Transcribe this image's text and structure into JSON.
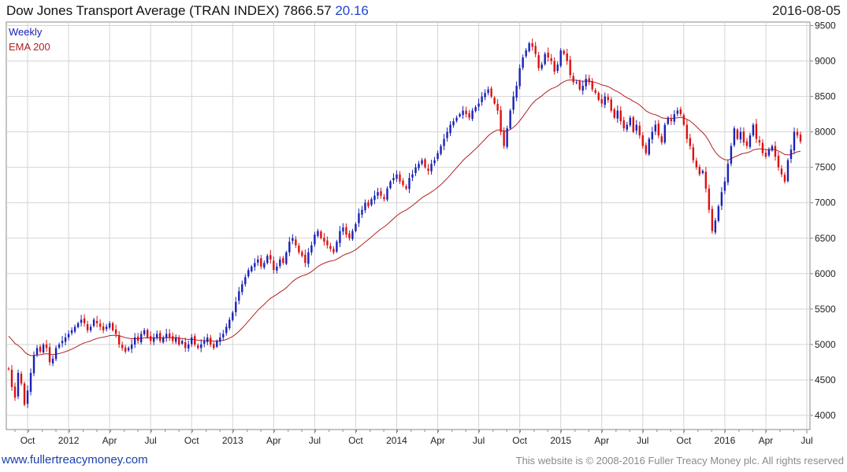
{
  "header": {
    "title": "Dow Jones Transport Average (TRAN INDEX) 7866.57",
    "change": "20.16",
    "date": "2016-08-05"
  },
  "footer": {
    "site_link": "www.fullertreacymoney.com",
    "copyright": "This website is © 2008-2016 Fuller Treacy Money plc. All rights reserved"
  },
  "colors": {
    "up": "#1a22b8",
    "down": "#dd1111",
    "ema": "#b22222",
    "grid": "#d4d4d4",
    "axis": "#888888"
  },
  "chart_data": {
    "type": "candlestick",
    "title": "Dow Jones Transport Average (TRAN INDEX)",
    "period": "Weekly",
    "ylim": [
      3800,
      9550
    ],
    "y_ticks": [
      4000,
      4500,
      5000,
      5500,
      6000,
      6500,
      7000,
      7500,
      8000,
      8500,
      9000,
      9500
    ],
    "x_ticks": [
      {
        "label": "Oct",
        "week": 6
      },
      {
        "label": "2012",
        "week": 19
      },
      {
        "label": "Apr",
        "week": 32
      },
      {
        "label": "Jul",
        "week": 45
      },
      {
        "label": "Oct",
        "week": 58
      },
      {
        "label": "2013",
        "week": 71
      },
      {
        "label": "Apr",
        "week": 84
      },
      {
        "label": "Jul",
        "week": 97
      },
      {
        "label": "Oct",
        "week": 110
      },
      {
        "label": "2014",
        "week": 123
      },
      {
        "label": "Apr",
        "week": 136
      },
      {
        "label": "Jul",
        "week": 149
      },
      {
        "label": "Oct",
        "week": 162
      },
      {
        "label": "2015",
        "week": 175
      },
      {
        "label": "Apr",
        "week": 188
      },
      {
        "label": "Jul",
        "week": 201
      },
      {
        "label": "Oct",
        "week": 214
      },
      {
        "label": "2016",
        "week": 227
      },
      {
        "label": "Apr",
        "week": 240
      },
      {
        "label": "Jul",
        "week": 253
      }
    ],
    "legend": [
      {
        "label": "Weekly",
        "color": "#1a22b8"
      },
      {
        "label": "EMA 200",
        "color": "#b22222"
      }
    ],
    "weekly_close": [
      4650,
      4400,
      4250,
      4600,
      4450,
      4150,
      4350,
      4600,
      4850,
      4950,
      4900,
      5000,
      4950,
      4750,
      4800,
      4950,
      5000,
      5050,
      5100,
      5150,
      5200,
      5250,
      5300,
      5350,
      5300,
      5200,
      5250,
      5350,
      5300,
      5250,
      5200,
      5250,
      5300,
      5200,
      5150,
      5000,
      4950,
      4900,
      4950,
      5000,
      5100,
      5050,
      5150,
      5200,
      5100,
      5050,
      5100,
      5150,
      5050,
      5100,
      5150,
      5100,
      5050,
      5100,
      5000,
      5050,
      4950,
      5000,
      5100,
      5000,
      4950,
      5000,
      5050,
      5100,
      5000,
      4950,
      5050,
      5100,
      5150,
      5250,
      5350,
      5450,
      5600,
      5750,
      5850,
      5950,
      6050,
      6100,
      6150,
      6200,
      6100,
      6150,
      6250,
      6200,
      6050,
      6100,
      6200,
      6150,
      6300,
      6450,
      6500,
      6400,
      6300,
      6250,
      6150,
      6300,
      6400,
      6550,
      6600,
      6500,
      6450,
      6400,
      6350,
      6300,
      6450,
      6600,
      6650,
      6550,
      6500,
      6600,
      6700,
      6850,
      6900,
      7000,
      6950,
      7050,
      7100,
      7150,
      7100,
      7050,
      7200,
      7300,
      7350,
      7400,
      7300,
      7250,
      7200,
      7350,
      7400,
      7500,
      7550,
      7600,
      7500,
      7450,
      7550,
      7600,
      7700,
      7800,
      7900,
      8000,
      8100,
      8150,
      8200,
      8250,
      8300,
      8250,
      8200,
      8300,
      8350,
      8400,
      8500,
      8550,
      8600,
      8500,
      8400,
      8300,
      8000,
      7800,
      8050,
      8300,
      8500,
      8650,
      8900,
      9050,
      9150,
      9250,
      9200,
      9100,
      8900,
      8950,
      9100,
      9050,
      9000,
      8850,
      8950,
      9150,
      9100,
      9000,
      8800,
      8700,
      8700,
      8600,
      8650,
      8750,
      8700,
      8600,
      8550,
      8450,
      8400,
      8500,
      8450,
      8300,
      8200,
      8300,
      8150,
      8050,
      8100,
      8200,
      8000,
      8100,
      7950,
      7800,
      7700,
      7900,
      8000,
      8100,
      7950,
      7850,
      8100,
      8200,
      8150,
      8250,
      8300,
      8250,
      8100,
      7900,
      7800,
      7600,
      7500,
      7400,
      7450,
      7200,
      6900,
      6600,
      6750,
      6950,
      7150,
      7300,
      7550,
      7800,
      8050,
      7900,
      8000,
      7850,
      7800,
      7950,
      8100,
      7900,
      7850,
      7700,
      7650,
      7750,
      7800,
      7650,
      7500,
      7400,
      7300,
      7600,
      7750,
      8000,
      7950,
      7866
    ]
  }
}
